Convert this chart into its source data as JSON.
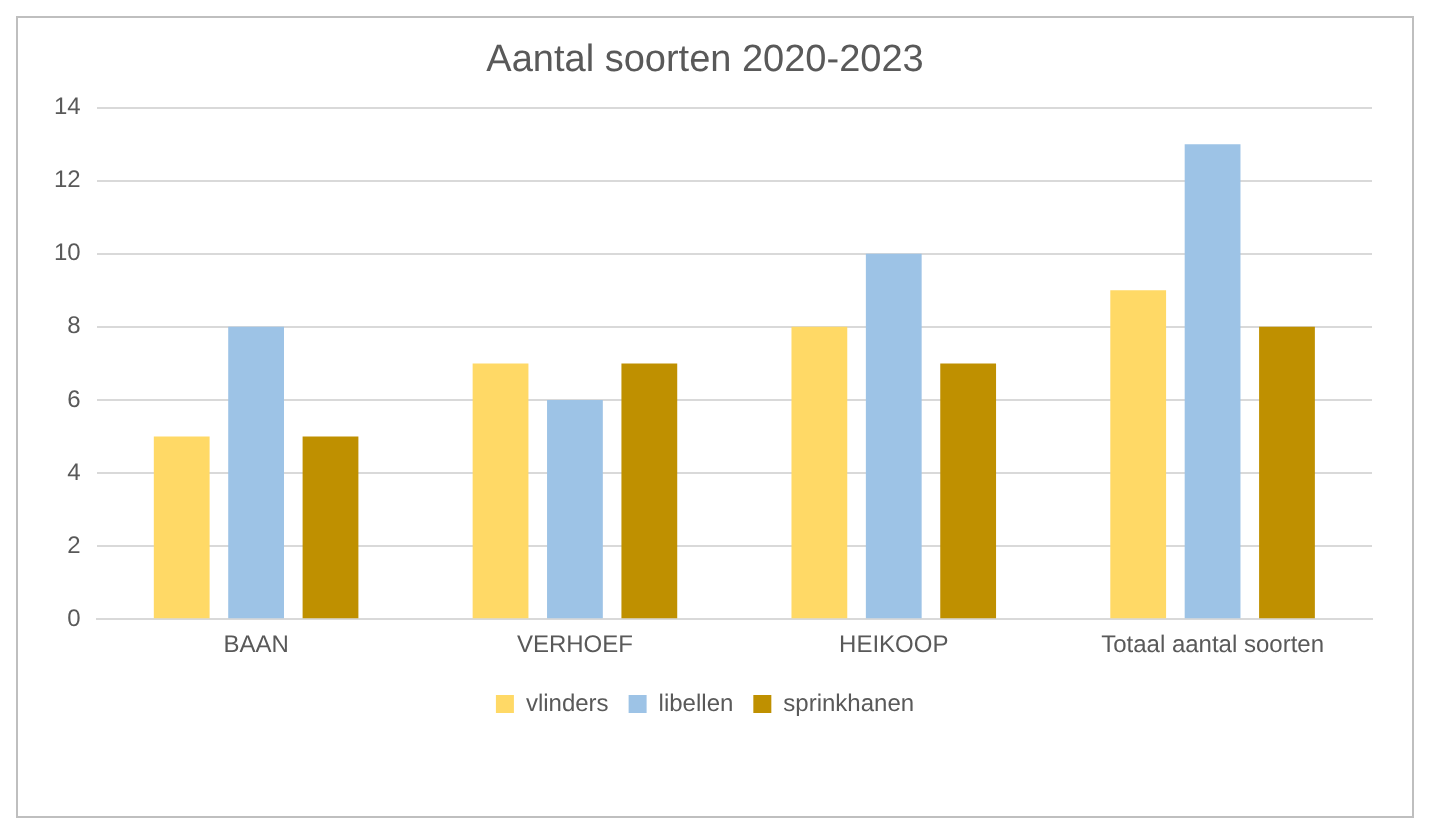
{
  "chart_data": {
    "type": "bar",
    "title": "Aantal soorten 2020-2023",
    "categories": [
      "BAAN",
      "VERHOEF",
      "HEIKOOP",
      "Totaal aantal soorten"
    ],
    "series": [
      {
        "name": "vlinders",
        "color": "#ffd966",
        "values": [
          5,
          7,
          8,
          9
        ]
      },
      {
        "name": "libellen",
        "color": "#9dc3e6",
        "values": [
          8,
          6,
          10,
          13
        ]
      },
      {
        "name": "sprinkhanen",
        "color": "#bf9000",
        "values": [
          5,
          7,
          7,
          8
        ]
      }
    ],
    "ylim": [
      0,
      14
    ],
    "yticks": [
      0,
      2,
      4,
      6,
      8,
      10,
      12,
      14
    ],
    "grid": "y",
    "legend": "bottom"
  }
}
